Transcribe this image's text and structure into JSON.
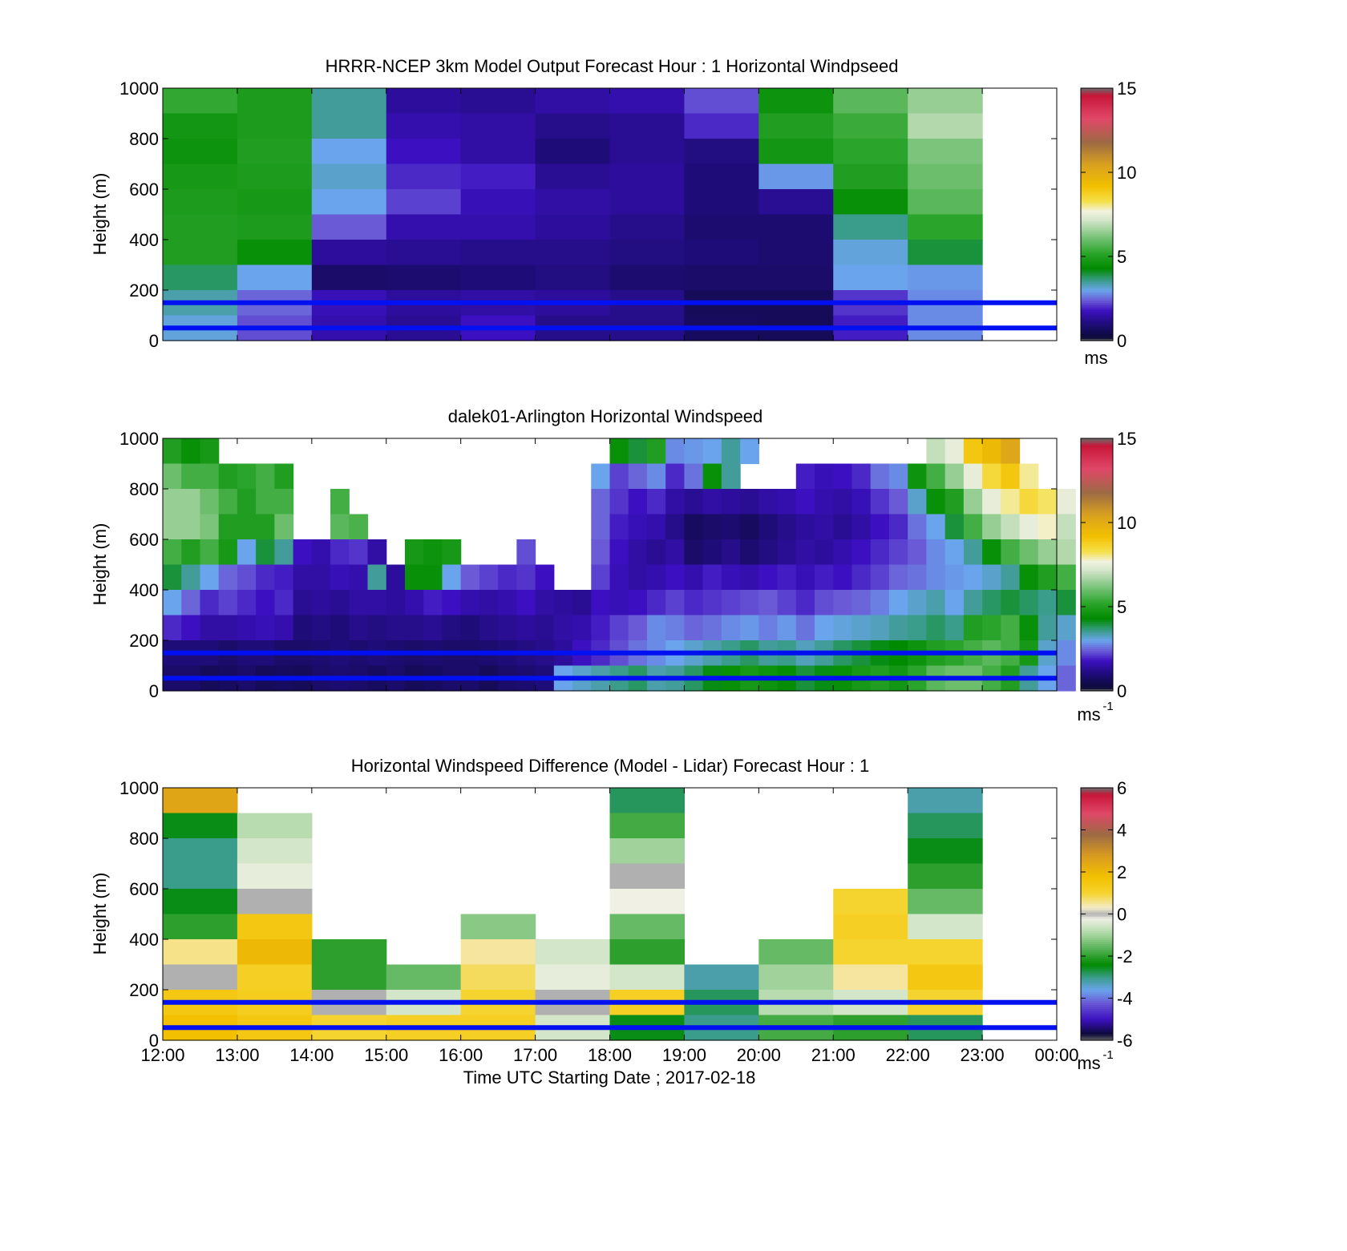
{
  "figure": {
    "xlabel": "Time UTC  Starting Date ; 2017-02-18",
    "x_ticks": [
      "12:00",
      "13:00",
      "14:00",
      "15:00",
      "16:00",
      "17:00",
      "18:00",
      "19:00",
      "20:00",
      "21:00",
      "22:00",
      "23:00",
      "00:00"
    ]
  },
  "chart_data": [
    {
      "type": "heatmap",
      "title": "HRRR-NCEP 3km Model Output   Forecast Hour : 1 Horizontal Windpseed",
      "ylabel": "Height (m)",
      "ylim": [
        0,
        1000
      ],
      "y_ticks": [
        0,
        200,
        400,
        600,
        800,
        1000
      ],
      "x": [
        "12:00",
        "13:00",
        "14:00",
        "15:00",
        "16:00",
        "17:00",
        "18:00",
        "19:00",
        "20:00",
        "21:00",
        "22:00"
      ],
      "heights": [
        950,
        850,
        750,
        650,
        550,
        450,
        350,
        250,
        150,
        50
      ],
      "values": [
        [
          5.3,
          4.7,
          4.6,
          4.8,
          4.9,
          5.0,
          5.0,
          3.8,
          3.4,
          3.1
        ],
        [
          4.9,
          4.9,
          5.0,
          4.9,
          4.8,
          4.9,
          4.5,
          3.0,
          2.5,
          2.3
        ],
        [
          3.5,
          3.5,
          3.0,
          3.2,
          3.0,
          2.4,
          1.4,
          0.8,
          1.7,
          1.6
        ],
        [
          1.4,
          1.6,
          1.8,
          2.0,
          2.2,
          1.6,
          1.3,
          0.9,
          1.4,
          1.3
        ],
        [
          1.3,
          1.5,
          1.5,
          1.9,
          1.7,
          1.6,
          1.2,
          1.0,
          1.5,
          1.8
        ],
        [
          1.5,
          1.2,
          1.0,
          1.3,
          1.5,
          1.4,
          1.2,
          1.1,
          1.4,
          1.2
        ],
        [
          1.6,
          1.3,
          1.3,
          1.4,
          1.4,
          1.2,
          1.1,
          0.9,
          1.2,
          1.2
        ],
        [
          2.3,
          2.0,
          1.1,
          1.0,
          1.0,
          0.9,
          1.0,
          0.8,
          0.6,
          0.7
        ],
        [
          4.6,
          5.0,
          4.7,
          2.9,
          1.3,
          0.9,
          0.9,
          0.8,
          0.6,
          0.6
        ],
        [
          5.8,
          5.4,
          5.2,
          5.0,
          4.5,
          3.6,
          3.1,
          3.0,
          2.1,
          1.9
        ],
        [
          6.5,
          6.8,
          6.2,
          6.0,
          5.8,
          5.2,
          4.0,
          2.9,
          2.8,
          2.8
        ]
      ],
      "colorbar": {
        "min": 0,
        "max": 15,
        "ticks": [
          0,
          5,
          10,
          15
        ],
        "unit": "ms"
      },
      "reference_lines_m": [
        150,
        50
      ]
    },
    {
      "type": "heatmap",
      "title": "dalek01-Arlington  Horizontal Windspeed",
      "ylabel": "Height (m)",
      "ylim": [
        0,
        1000
      ],
      "y_ticks": [
        0,
        200,
        400,
        600,
        800,
        1000
      ],
      "x_start": "12:00",
      "x_end": "00:00",
      "x_step_minutes": 15,
      "heights": [
        950,
        850,
        750,
        650,
        550,
        450,
        350,
        250,
        150,
        50
      ],
      "values": [
        [
          5.0,
          6.0,
          6.5,
          6.5,
          5.5,
          4.0,
          3.0,
          2.0,
          1.0,
          0.8
        ],
        [
          4.5,
          5.5,
          6.5,
          6.5,
          5.0,
          3.5,
          2.5,
          1.8,
          1.0,
          0.8
        ],
        [
          4.8,
          5.5,
          6.0,
          6.2,
          5.5,
          3.0,
          2.0,
          1.5,
          1.0,
          0.6
        ],
        [
          null,
          5.0,
          5.5,
          5.0,
          4.8,
          2.5,
          2.2,
          1.5,
          0.8,
          0.7
        ],
        [
          null,
          5.2,
          5.0,
          5.0,
          3.0,
          2.3,
          2.0,
          1.6,
          1.0,
          0.8
        ],
        [
          null,
          5.5,
          5.5,
          5.0,
          4.0,
          2.0,
          1.8,
          1.7,
          1.0,
          0.6
        ],
        [
          null,
          5.0,
          5.5,
          6.0,
          3.5,
          1.9,
          2.0,
          1.6,
          0.8,
          0.7
        ],
        [
          null,
          null,
          null,
          null,
          1.8,
          1.5,
          1.3,
          1.0,
          0.8,
          0.6
        ],
        [
          null,
          null,
          null,
          null,
          1.6,
          1.5,
          1.4,
          1.1,
          0.9,
          0.8
        ],
        [
          null,
          null,
          5.5,
          5.8,
          2.0,
          1.7,
          1.3,
          1.0,
          1.0,
          0.9
        ],
        [
          null,
          null,
          null,
          5.6,
          2.1,
          1.6,
          1.5,
          1.2,
          0.9,
          0.8
        ],
        [
          null,
          null,
          null,
          null,
          1.5,
          3.5,
          1.5,
          1.1,
          1.0,
          0.7
        ],
        [
          null,
          null,
          null,
          null,
          null,
          1.4,
          1.4,
          1.2,
          0.9,
          0.8
        ],
        [
          null,
          null,
          null,
          null,
          4.8,
          4.5,
          1.6,
          1.2,
          0.8,
          0.6
        ],
        [
          null,
          null,
          null,
          null,
          4.6,
          4.5,
          1.9,
          1.3,
          0.9,
          0.7
        ],
        [
          null,
          null,
          null,
          null,
          4.8,
          3.0,
          1.8,
          1.1,
          0.8,
          0.8
        ],
        [
          null,
          null,
          null,
          null,
          null,
          2.4,
          1.6,
          1.0,
          0.8,
          0.8
        ],
        [
          null,
          null,
          null,
          null,
          null,
          2.2,
          1.5,
          1.2,
          0.9,
          0.6
        ],
        [
          null,
          null,
          null,
          null,
          null,
          2.0,
          1.6,
          1.3,
          1.0,
          0.8
        ],
        [
          null,
          null,
          null,
          null,
          2.3,
          2.1,
          1.8,
          1.4,
          1.1,
          0.9
        ],
        [
          null,
          null,
          null,
          null,
          null,
          1.8,
          1.5,
          1.3,
          1.2,
          1.0
        ],
        [
          null,
          null,
          null,
          null,
          null,
          null,
          1.4,
          1.5,
          1.4,
          3.0
        ],
        [
          null,
          null,
          null,
          null,
          null,
          null,
          1.3,
          1.6,
          1.8,
          3.2
        ],
        [
          null,
          3.0,
          2.5,
          2.5,
          2.4,
          2.2,
          1.8,
          1.9,
          2.0,
          3.4
        ],
        [
          4.5,
          2.2,
          2.1,
          1.9,
          1.8,
          1.7,
          1.7,
          2.2,
          2.3,
          3.6
        ],
        [
          4.0,
          2.5,
          1.8,
          1.7,
          1.5,
          1.5,
          1.8,
          2.4,
          2.6,
          3.8
        ],
        [
          5.0,
          2.8,
          2.0,
          1.6,
          1.3,
          1.6,
          2.0,
          2.8,
          2.8,
          3.4
        ],
        [
          2.8,
          2.0,
          1.5,
          1.2,
          1.5,
          1.8,
          2.2,
          2.7,
          3.0,
          3.5
        ],
        [
          2.9,
          2.6,
          1.3,
          0.7,
          0.8,
          1.6,
          2.0,
          2.5,
          3.2,
          3.8
        ],
        [
          3.0,
          4.5,
          1.5,
          0.8,
          1.0,
          1.9,
          2.1,
          2.6,
          3.4,
          4.2
        ],
        [
          3.5,
          3.5,
          1.4,
          0.9,
          1.2,
          1.7,
          2.2,
          2.8,
          3.6,
          4.5
        ],
        [
          3.0,
          null,
          1.3,
          0.7,
          0.9,
          1.6,
          2.3,
          2.9,
          3.8,
          4.8
        ],
        [
          null,
          null,
          1.5,
          1.0,
          1.1,
          1.8,
          2.4,
          2.7,
          3.5,
          4.6
        ],
        [
          null,
          null,
          1.6,
          1.2,
          1.3,
          1.9,
          2.2,
          2.9,
          3.6,
          4.4
        ],
        [
          null,
          1.9,
          1.8,
          1.4,
          1.5,
          1.7,
          2.0,
          2.6,
          3.3,
          4.0
        ],
        [
          null,
          1.7,
          1.6,
          1.5,
          1.4,
          1.9,
          2.3,
          3.0,
          3.5,
          4.2
        ],
        [
          null,
          1.8,
          1.5,
          1.3,
          1.6,
          1.8,
          2.4,
          3.1,
          3.8,
          4.5
        ],
        [
          null,
          2.0,
          1.7,
          1.5,
          1.8,
          2.0,
          2.5,
          3.2,
          4.0,
          4.8
        ],
        [
          null,
          2.6,
          2.1,
          1.8,
          2.0,
          2.2,
          2.7,
          3.3,
          4.2,
          5.0
        ],
        [
          null,
          2.8,
          2.4,
          2.0,
          2.2,
          2.5,
          3.0,
          3.5,
          4.3,
          4.7
        ],
        [
          null,
          4.6,
          3.2,
          2.6,
          2.4,
          2.6,
          3.2,
          3.6,
          4.6,
          5.2
        ],
        [
          7.0,
          5.5,
          4.5,
          3.0,
          2.8,
          2.8,
          3.4,
          3.8,
          5.0,
          5.8
        ],
        [
          7.5,
          6.5,
          5.0,
          4.0,
          3.0,
          2.9,
          3.0,
          3.6,
          5.2,
          6.0
        ],
        [
          9.0,
          7.5,
          6.5,
          5.5,
          3.5,
          3.0,
          3.5,
          5.0,
          5.5,
          6.0
        ],
        [
          9.5,
          8.5,
          7.5,
          6.5,
          4.5,
          3.2,
          3.8,
          5.2,
          5.8,
          5.5
        ],
        [
          10.2,
          9.0,
          8.0,
          7.0,
          5.5,
          3.5,
          4.0,
          5.5,
          5.5,
          5.0
        ],
        [
          null,
          8.0,
          8.5,
          7.5,
          6.0,
          4.5,
          3.8,
          4.5,
          4.8,
          3.5
        ],
        [
          null,
          null,
          8.2,
          7.8,
          6.5,
          5.0,
          3.6,
          3.5,
          3.2,
          3.0
        ],
        [
          null,
          null,
          7.5,
          7.0,
          6.8,
          5.5,
          4.0,
          3.2,
          2.8,
          2.5
        ]
      ],
      "colorbar": {
        "min": 0,
        "max": 15,
        "ticks": [
          0,
          5,
          10,
          15
        ],
        "unit": "ms",
        "unit_exponent": "-1"
      },
      "reference_lines_m": [
        150,
        50
      ]
    },
    {
      "type": "heatmap",
      "title": "Horizontal Windspeed Difference (Model - Lidar) Forecast Hour : 1",
      "ylabel": "Height (m)",
      "ylim": [
        0,
        1000
      ],
      "y_ticks": [
        0,
        200,
        400,
        600,
        800,
        1000
      ],
      "x": [
        "12:00",
        "13:00",
        "14:00",
        "15:00",
        "16:00",
        "17:00",
        "18:00",
        "19:00",
        "20:00",
        "21:00",
        "22:00"
      ],
      "heights": [
        950,
        850,
        750,
        650,
        550,
        450,
        350,
        250,
        150,
        50
      ],
      "values": [
        [
          2.5,
          -2.5,
          -3.0,
          -3.0,
          -2.5,
          -2.0,
          0.6,
          0.0,
          1.5,
          1.8
        ],
        [
          null,
          -0.8,
          -0.5,
          -0.3,
          0.0,
          1.5,
          2.0,
          1.2,
          1.3,
          1.5
        ],
        [
          null,
          null,
          null,
          null,
          null,
          null,
          -2.0,
          -2.0,
          0.0,
          1.0
        ],
        [
          null,
          null,
          null,
          null,
          null,
          null,
          null,
          -1.5,
          -0.5,
          1.2
        ],
        [
          null,
          null,
          null,
          null,
          null,
          -1.2,
          0.5,
          0.8,
          1.0,
          1.2
        ],
        [
          null,
          null,
          null,
          null,
          null,
          null,
          -0.5,
          -0.3,
          0.0,
          -0.5
        ],
        [
          -2.8,
          -1.8,
          -1.0,
          0.0,
          -0.2,
          -1.5,
          -2.0,
          -0.5,
          1.2,
          -2.5
        ],
        [
          null,
          null,
          null,
          null,
          null,
          null,
          null,
          -3.2,
          -2.8,
          -3.0
        ],
        [
          null,
          null,
          null,
          null,
          null,
          null,
          -1.5,
          -1.0,
          -0.8,
          -1.8
        ],
        [
          null,
          null,
          null,
          null,
          1.0,
          1.2,
          1.0,
          0.5,
          -0.5,
          -2.0
        ],
        [
          -3.2,
          -2.8,
          -2.5,
          -2.0,
          -1.5,
          -0.5,
          1.0,
          1.5,
          1.0,
          -2.8
        ]
      ],
      "colorbar": {
        "min": -6,
        "max": 6,
        "ticks": [
          -6,
          -4,
          -2,
          0,
          2,
          4,
          6
        ],
        "unit": "ms",
        "unit_exponent": "-1"
      },
      "reference_lines_m": [
        150,
        50
      ]
    }
  ]
}
